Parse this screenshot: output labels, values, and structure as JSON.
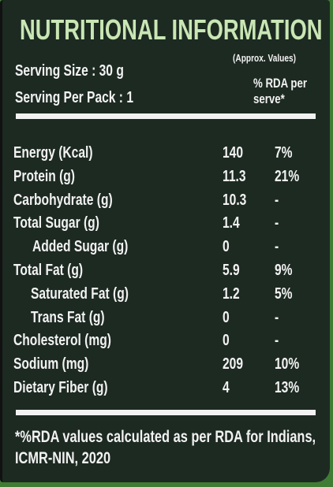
{
  "header": {
    "title": "NUTRITIONAL INFORMATION"
  },
  "serving": {
    "size": "Serving Size : 30 g",
    "per_pack": "Serving Per Pack : 1",
    "approx": "(Approx. Values)",
    "rda_header": "% RDA per serve*"
  },
  "table": {
    "rows": [
      [
        "Energy (Kcal)",
        "140",
        "7%"
      ],
      [
        "Protein (g)",
        "11.3",
        "21%"
      ],
      [
        "Carbohydrate (g)",
        "10.3",
        "-"
      ],
      [
        "Total Sugar (g)",
        "1.4",
        "-"
      ],
      [
        "Added Sugar (g)",
        "0",
        "-"
      ],
      [
        "Total Fat (g)",
        "5.9",
        "9%"
      ],
      [
        "Saturated Fat (g)",
        "1.2",
        "5%"
      ],
      [
        "Trans Fat (g)",
        "0",
        "-"
      ],
      [
        "Cholesterol (mg)",
        "0",
        "-"
      ],
      [
        "Sodium (mg)",
        "209",
        "10%"
      ],
      [
        "Dietary Fiber (g)",
        "4",
        "13%"
      ]
    ]
  },
  "footnote": "*%RDA values calculated as per RDA for Indians, ICMR-NIN, 2020"
}
